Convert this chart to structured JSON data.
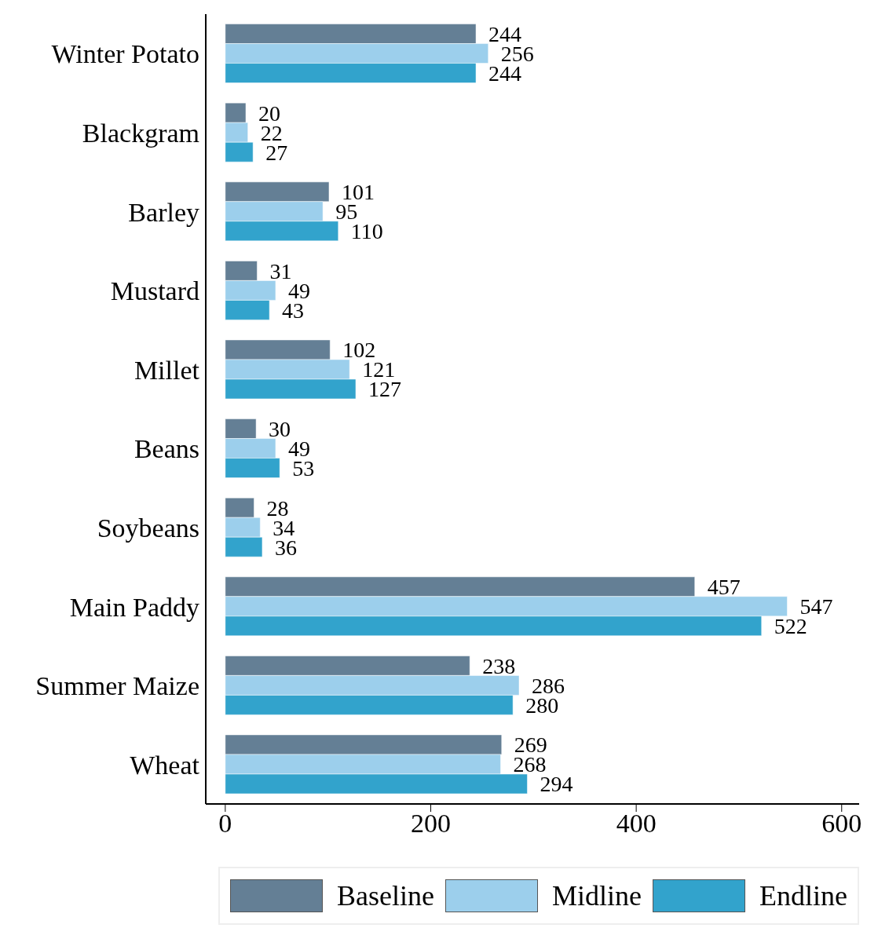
{
  "chart_data": {
    "type": "bar",
    "orientation": "horizontal",
    "categories": [
      "Winter Potato",
      "Blackgram",
      "Barley",
      "Mustard",
      "Millet",
      "Beans",
      "Soybeans",
      "Main Paddy",
      "Summer Maize",
      "Wheat"
    ],
    "series": [
      {
        "name": "Baseline",
        "color": "#647f95",
        "values": [
          244,
          20,
          101,
          31,
          102,
          30,
          28,
          457,
          238,
          269
        ]
      },
      {
        "name": "Midline",
        "color": "#9ccfec",
        "values": [
          256,
          22,
          95,
          49,
          121,
          49,
          34,
          547,
          286,
          268
        ]
      },
      {
        "name": "Endline",
        "color": "#32a3cc",
        "values": [
          244,
          27,
          110,
          43,
          127,
          53,
          36,
          522,
          280,
          294
        ]
      }
    ],
    "xlim": [
      -19,
      617
    ],
    "xticks": [
      0,
      200,
      400,
      600
    ],
    "data_labels": true,
    "grid": false,
    "legend": "bottom"
  }
}
